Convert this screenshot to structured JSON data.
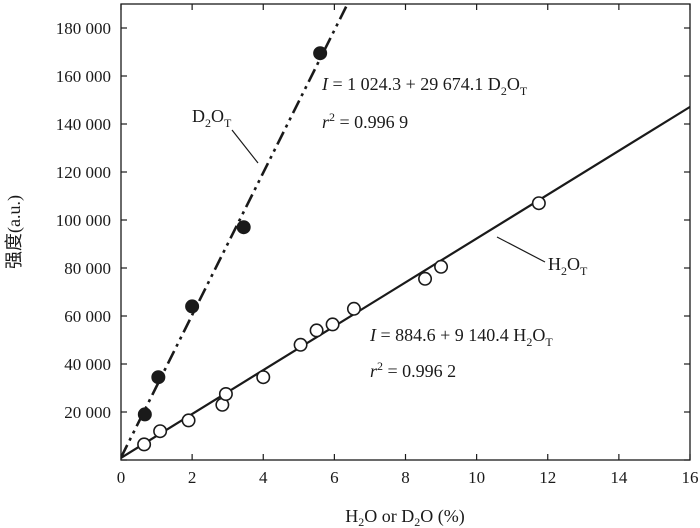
{
  "chart_data": {
    "type": "scatter",
    "xlabel": "H₂O or D₂O (%)",
    "ylabel": "强度(a.u.)",
    "xlim": [
      0,
      16
    ],
    "ylim": [
      0,
      190000
    ],
    "x_ticks": [
      0,
      2,
      4,
      6,
      8,
      10,
      12,
      14,
      16
    ],
    "x_tick_labels": [
      "0",
      "2",
      "4",
      "6",
      "8",
      "10",
      "12",
      "14",
      "16"
    ],
    "y_ticks": [
      0,
      20000,
      40000,
      60000,
      80000,
      100000,
      120000,
      140000,
      160000,
      180000
    ],
    "y_tick_labels": [
      "",
      "20 000",
      "40 000",
      "60 000",
      "80 000",
      "100 000",
      "120 000",
      "140 000",
      "160 000",
      "180 000"
    ],
    "grid": false,
    "series": [
      {
        "name": "D₂O_T",
        "marker": "filled-circle",
        "color": "#1a1a1a",
        "line_style": "dash-dot-dot",
        "fit": {
          "intercept": 1024.3,
          "slope": 29674.1
        },
        "points": [
          {
            "x": 0.67,
            "y": 19000
          },
          {
            "x": 1.05,
            "y": 34500
          },
          {
            "x": 2.0,
            "y": 64000
          },
          {
            "x": 3.45,
            "y": 97000
          },
          {
            "x": 5.6,
            "y": 169500
          }
        ]
      },
      {
        "name": "H₂O_T",
        "marker": "open-circle",
        "color": "#1a1a1a",
        "line_style": "solid",
        "fit": {
          "intercept": 884.6,
          "slope": 9140.4
        },
        "points": [
          {
            "x": 0.65,
            "y": 6500
          },
          {
            "x": 1.1,
            "y": 12000
          },
          {
            "x": 1.9,
            "y": 16500
          },
          {
            "x": 2.85,
            "y": 23000
          },
          {
            "x": 2.95,
            "y": 27500
          },
          {
            "x": 4.0,
            "y": 34500
          },
          {
            "x": 5.05,
            "y": 48000
          },
          {
            "x": 5.5,
            "y": 54000
          },
          {
            "x": 5.95,
            "y": 56500
          },
          {
            "x": 6.55,
            "y": 63000
          },
          {
            "x": 8.55,
            "y": 75500
          },
          {
            "x": 9.0,
            "y": 80500
          },
          {
            "x": 11.75,
            "y": 107000
          }
        ]
      }
    ],
    "annotations": {
      "d2o_label": {
        "main": "D",
        "sub1": "2",
        "mid": "O",
        "sub2": "T"
      },
      "h2o_label": {
        "main": "H",
        "sub1": "2",
        "mid": "O",
        "sub2": "T"
      },
      "d2o_eq": {
        "i": "I",
        "body": " = 1 024.3 + 29 674.1 D",
        "s1": "2",
        "o": "O",
        "s2": "T"
      },
      "d2o_r2": {
        "r": "r",
        "sup": "2",
        "value": " = 0.996 9"
      },
      "h2o_eq": {
        "i": "I",
        "body": " = 884.6 + 9 140.4 H",
        "s1": "2",
        "o": "O",
        "s2": "T"
      },
      "h2o_r2": {
        "r": "r",
        "sup": "2",
        "value": " = 0.996 2"
      }
    },
    "xlabel_parts": {
      "a": "H",
      "a_sub": "2",
      "b": "O or D",
      "b_sub": "2",
      "c": "O (%)"
    }
  }
}
